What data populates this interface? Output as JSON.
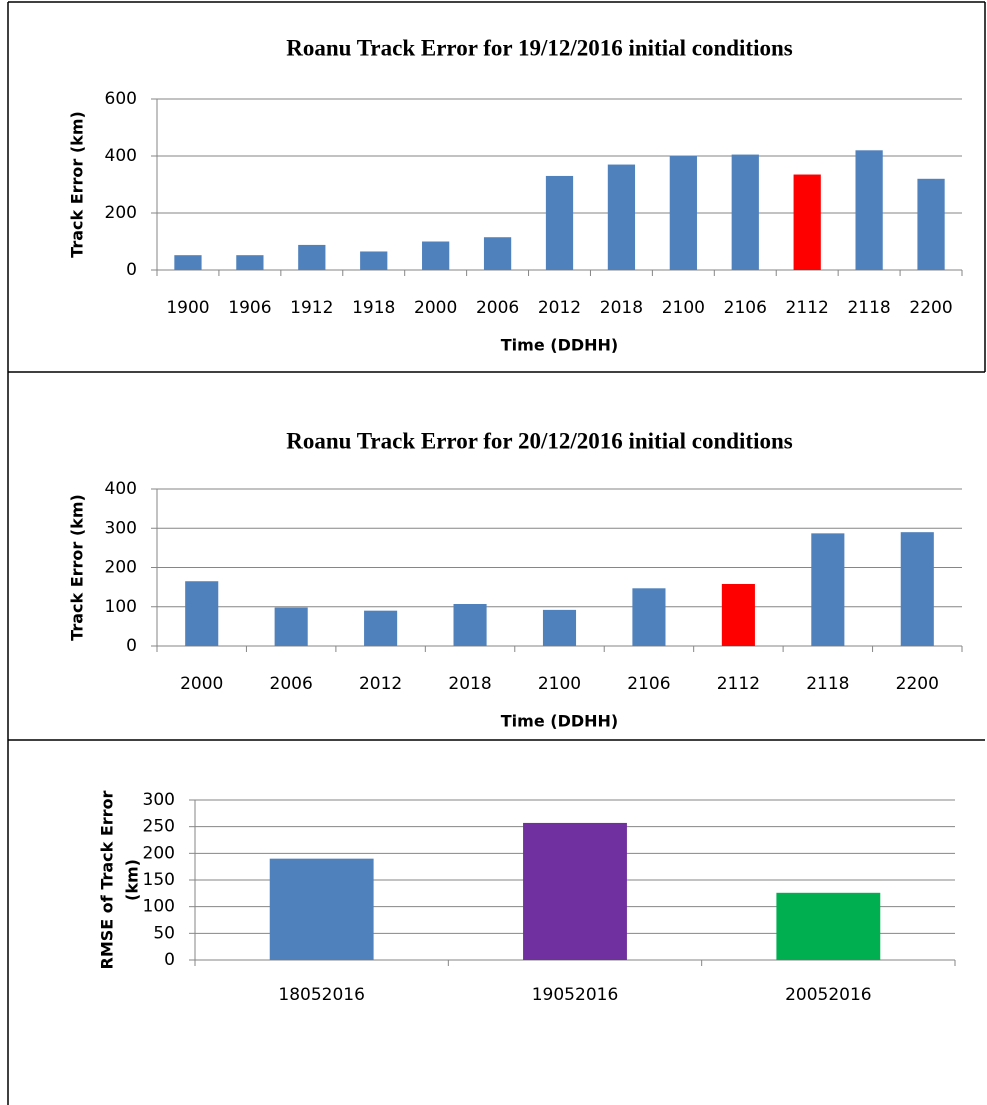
{
  "chart_data": [
    {
      "type": "bar",
      "title": "Roanu Track Error for 19/12/2016 initial conditions",
      "x_label": "Time (DDHH)",
      "y_label": "Track Error (km)",
      "categories": [
        "1900",
        "1906",
        "1912",
        "1918",
        "2000",
        "2006",
        "2012",
        "2018",
        "2100",
        "2106",
        "2112",
        "2118",
        "2200"
      ],
      "values": [
        52,
        52,
        88,
        65,
        100,
        115,
        330,
        370,
        400,
        405,
        335,
        420,
        320
      ],
      "colors": [
        "#4f81bd",
        "#4f81bd",
        "#4f81bd",
        "#4f81bd",
        "#4f81bd",
        "#4f81bd",
        "#4f81bd",
        "#4f81bd",
        "#4f81bd",
        "#4f81bd",
        "#ff0000",
        "#4f81bd",
        "#4f81bd"
      ],
      "ylim": [
        0,
        600
      ],
      "yticks": [
        0,
        200,
        400,
        600
      ],
      "grid": true
    },
    {
      "type": "bar",
      "title": "Roanu Track Error for 20/12/2016 initial conditions",
      "x_label": "Time (DDHH)",
      "y_label": "Track Error (km)",
      "categories": [
        "2000",
        "2006",
        "2012",
        "2018",
        "2100",
        "2106",
        "2112",
        "2118",
        "2200"
      ],
      "values": [
        165,
        98,
        90,
        107,
        92,
        147,
        158,
        287,
        290
      ],
      "colors": [
        "#4f81bd",
        "#4f81bd",
        "#4f81bd",
        "#4f81bd",
        "#4f81bd",
        "#4f81bd",
        "#ff0000",
        "#4f81bd",
        "#4f81bd"
      ],
      "ylim": [
        0,
        400
      ],
      "yticks": [
        0,
        100,
        200,
        300,
        400
      ],
      "grid": true
    },
    {
      "type": "bar",
      "y_label": [
        "RMSE of Track Error",
        "(km)"
      ],
      "categories": [
        "18052016",
        "19052016",
        "20052016"
      ],
      "values": [
        190,
        257,
        126
      ],
      "colors": [
        "#4f81bd",
        "#7030a0",
        "#00b050"
      ],
      "ylim": [
        0,
        300
      ],
      "yticks": [
        0,
        50,
        100,
        150,
        200,
        250,
        300
      ],
      "grid": true
    }
  ]
}
